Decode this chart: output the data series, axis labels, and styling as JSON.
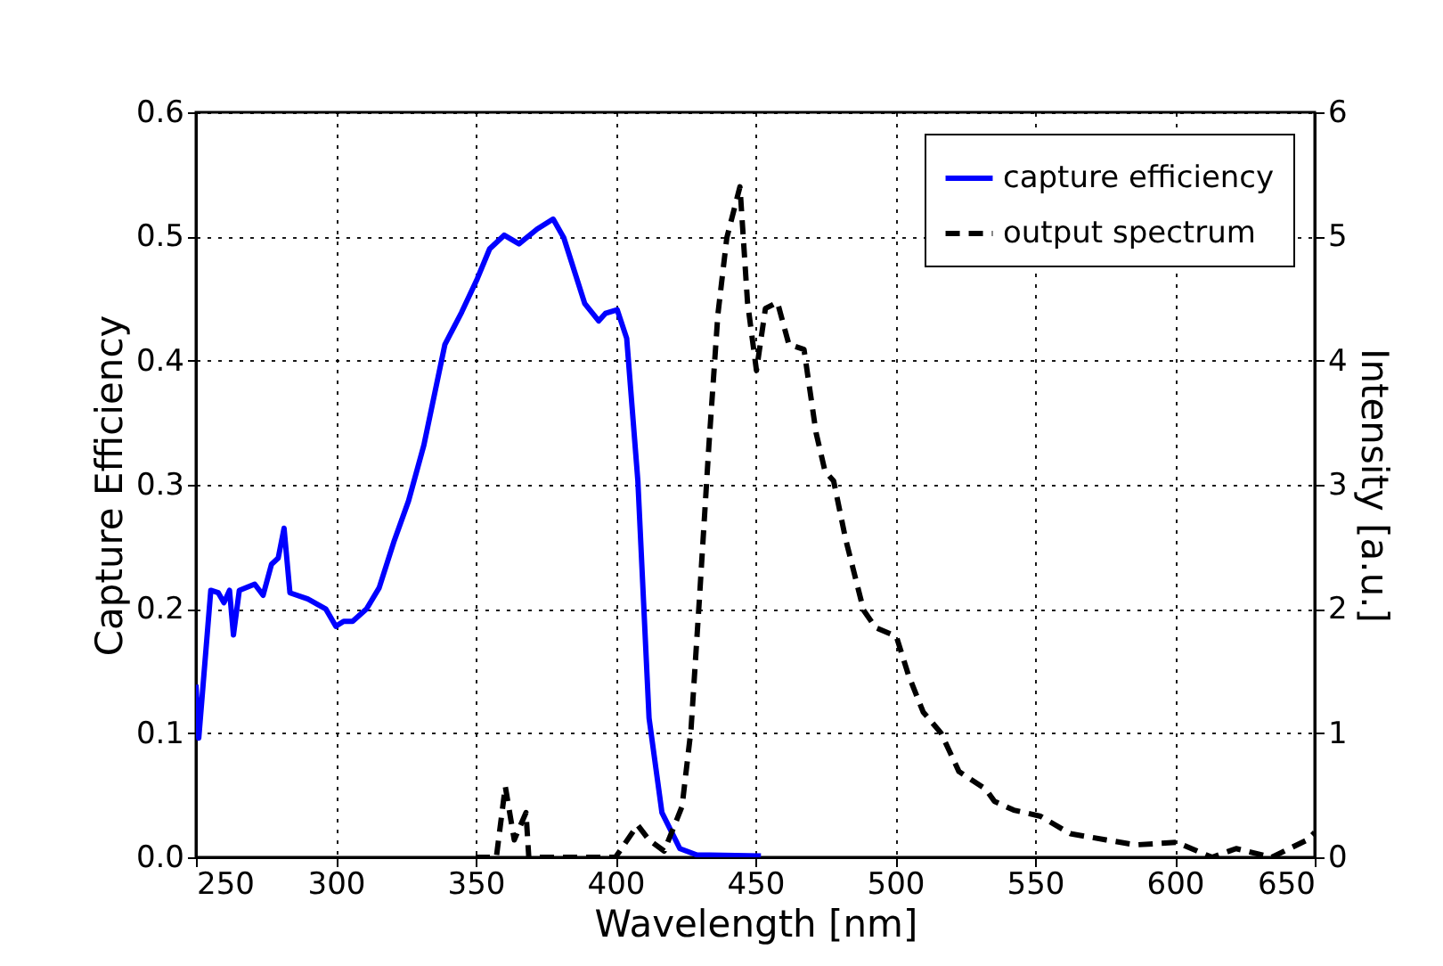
{
  "chart_data": {
    "type": "line",
    "xlabel": "Wavelength [nm]",
    "ylabel": "Capture Efficiency",
    "y2label": "Intensity [a.u.]",
    "xlim": [
      250,
      650
    ],
    "xticks": [
      250,
      300,
      350,
      400,
      450,
      500,
      550,
      600,
      650
    ],
    "ylim": [
      0,
      0.6
    ],
    "yticks": [
      {
        "value": 0,
        "label": "0.0"
      },
      0.1,
      0.2,
      0.3,
      0.4,
      0.5,
      0.6
    ],
    "y2lim": [
      0,
      6
    ],
    "y2ticks": [
      0,
      1,
      2,
      3,
      4,
      5,
      6
    ],
    "grid": true,
    "legend": "top right",
    "series": [
      {
        "name": "capture efficiency",
        "color": "#0000ff",
        "line_style": "solid",
        "x": [
          250,
          251,
          255.3,
          258,
          260,
          262,
          263.4,
          265.5,
          271,
          274,
          277,
          279.4,
          281.5,
          283.6,
          290,
          296.4,
          300,
          302.8,
          306,
          311,
          315.5,
          320.9,
          326,
          331.5,
          339,
          345,
          350.6,
          355,
          360.2,
          365.5,
          372,
          377.7,
          381.5,
          389,
          394,
          396.4,
          400.6,
          404,
          408,
          412,
          416.6,
          423,
          429,
          452
        ],
        "values": [
          0.139,
          0.096,
          0.215,
          0.213,
          0.205,
          0.215,
          0.179,
          0.215,
          0.22,
          0.211,
          0.236,
          0.241,
          0.265,
          0.213,
          0.208,
          0.2,
          0.186,
          0.19,
          0.19,
          0.2,
          0.217,
          0.255,
          0.287,
          0.332,
          0.413,
          0.439,
          0.466,
          0.49,
          0.501,
          0.494,
          0.506,
          0.514,
          0.499,
          0.446,
          0.432,
          0.438,
          0.441,
          0.418,
          0.303,
          0.112,
          0.036,
          0.007,
          0.002,
          0.001
        ]
      },
      {
        "name": "output spectrum",
        "color": "#000000",
        "line_style": "dashed",
        "axis": "y2",
        "x": [
          350,
          357.4,
          360.6,
          363.8,
          368,
          369,
          388,
          400,
          407.9,
          412,
          417.4,
          423.8,
          427,
          430,
          433.4,
          436.6,
          439.8,
          444.5,
          447.2,
          450.4,
          453.6,
          457.9,
          462,
          467.4,
          471.7,
          474.9,
          478,
          482.3,
          488.7,
          493,
          500.4,
          504.7,
          510,
          516.4,
          522.8,
          532.3,
          535.5,
          542.4,
          552,
          562.6,
          575.4,
          586,
          600.6,
          613.3,
          621.9,
          634.6,
          647.3,
          650
        ],
        "values": [
          0,
          0,
          0.57,
          0.14,
          0.36,
          0,
          0,
          0,
          0.26,
          0.14,
          0.05,
          0.41,
          1.03,
          2.08,
          3.32,
          4.37,
          4.99,
          5.4,
          4.47,
          3.92,
          4.42,
          4.47,
          4.13,
          4.09,
          3.42,
          3.11,
          3.03,
          2.56,
          1.99,
          1.85,
          1.78,
          1.47,
          1.17,
          1.0,
          0.69,
          0.55,
          0.45,
          0.38,
          0.33,
          0.19,
          0.14,
          0.1,
          0.12,
          0,
          0.07,
          0,
          0.14,
          0.2
        ]
      }
    ]
  }
}
